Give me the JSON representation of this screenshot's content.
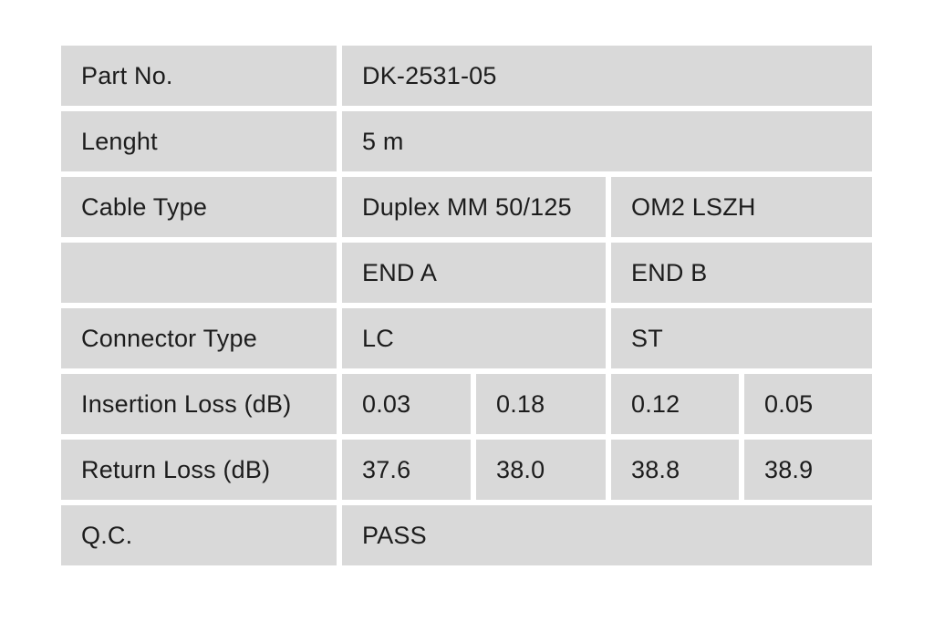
{
  "page": {
    "background_color": "#ffffff"
  },
  "table": {
    "cell_background_color": "#d9d9d9",
    "text_color": "#1c1c1c",
    "rows": {
      "part_no": {
        "label": "Part No.",
        "value": "DK-2531-05"
      },
      "length": {
        "label": "Lenght",
        "value": "5 m"
      },
      "cable_type": {
        "label": "Cable Type",
        "value_a": "Duplex MM 50/125",
        "value_b": "OM2 LSZH"
      },
      "ends": {
        "label": "",
        "value_a": "END A",
        "value_b": "END B"
      },
      "connector_type": {
        "label": "Connector Type",
        "value_a": "LC",
        "value_b": "ST"
      },
      "insertion_loss": {
        "label": "Insertion Loss (dB)",
        "end_a_1": "0.03",
        "end_a_2": "0.18",
        "end_b_1": "0.12",
        "end_b_2": "0.05"
      },
      "return_loss": {
        "label": "Return Loss (dB)",
        "end_a_1": "37.6",
        "end_a_2": "38.0",
        "end_b_1": "38.8",
        "end_b_2": "38.9"
      },
      "qc": {
        "label": "Q.C.",
        "value": "PASS"
      }
    }
  }
}
